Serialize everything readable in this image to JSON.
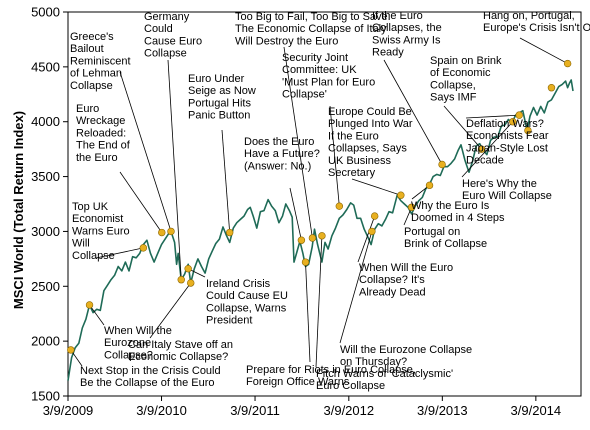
{
  "chart_data": {
    "type": "line",
    "ylabel": "MSCI World (Total Return Index)",
    "xlabel": "",
    "ylim": [
      1500,
      5000
    ],
    "yticks": [
      1500,
      2000,
      2500,
      3000,
      3500,
      4000,
      4500,
      5000
    ],
    "xticks": [
      {
        "label": "3/9/2009",
        "date": "2009-03-09"
      },
      {
        "label": "3/9/2010",
        "date": "2010-03-09"
      },
      {
        "label": "3/9/2011",
        "date": "2011-03-09"
      },
      {
        "label": "3/9/2012",
        "date": "2012-03-09"
      },
      {
        "label": "3/9/2013",
        "date": "2013-03-09"
      },
      {
        "label": "3/9/2014",
        "date": "2014-03-09"
      }
    ],
    "xlim": [
      "2009-03-09",
      "2014-08-01"
    ],
    "grid": false,
    "series_color": "#1f6b57",
    "marker_color": "#e8b020",
    "series": [
      {
        "points": [
          [
            "2009-03-09",
            1640
          ],
          [
            "2009-03-23",
            1850
          ],
          [
            "2009-04-06",
            1940
          ],
          [
            "2009-04-20",
            1980
          ],
          [
            "2009-05-04",
            2120
          ],
          [
            "2009-05-18",
            2200
          ],
          [
            "2009-06-01",
            2330
          ],
          [
            "2009-06-15",
            2260
          ],
          [
            "2009-06-29",
            2290
          ],
          [
            "2009-07-13",
            2280
          ],
          [
            "2009-07-27",
            2460
          ],
          [
            "2009-08-10",
            2510
          ],
          [
            "2009-08-24",
            2560
          ],
          [
            "2009-09-07",
            2600
          ],
          [
            "2009-09-21",
            2680
          ],
          [
            "2009-10-05",
            2640
          ],
          [
            "2009-10-19",
            2720
          ],
          [
            "2009-11-02",
            2640
          ],
          [
            "2009-11-16",
            2770
          ],
          [
            "2009-11-30",
            2760
          ],
          [
            "2009-12-14",
            2800
          ],
          [
            "2009-12-28",
            2880
          ],
          [
            "2010-01-11",
            2920
          ],
          [
            "2010-01-25",
            2800
          ],
          [
            "2010-02-08",
            2720
          ],
          [
            "2010-02-22",
            2800
          ],
          [
            "2010-03-09",
            2880
          ],
          [
            "2010-03-23",
            2930
          ],
          [
            "2010-04-06",
            2980
          ],
          [
            "2010-04-15",
            3000
          ],
          [
            "2010-04-29",
            2900
          ],
          [
            "2010-05-07",
            2700
          ],
          [
            "2010-05-13",
            2800
          ],
          [
            "2010-05-25",
            2560
          ],
          [
            "2010-06-07",
            2610
          ],
          [
            "2010-06-21",
            2700
          ],
          [
            "2010-07-01",
            2530
          ],
          [
            "2010-07-15",
            2660
          ],
          [
            "2010-07-29",
            2750
          ],
          [
            "2010-08-12",
            2680
          ],
          [
            "2010-08-26",
            2620
          ],
          [
            "2010-09-09",
            2750
          ],
          [
            "2010-09-23",
            2820
          ],
          [
            "2010-10-07",
            2890
          ],
          [
            "2010-10-21",
            2930
          ],
          [
            "2010-11-04",
            3040
          ],
          [
            "2010-11-18",
            2960
          ],
          [
            "2010-11-30",
            2900
          ],
          [
            "2010-12-14",
            3030
          ],
          [
            "2010-12-28",
            3080
          ],
          [
            "2011-01-11",
            3110
          ],
          [
            "2011-01-25",
            3140
          ],
          [
            "2011-02-08",
            3200
          ],
          [
            "2011-02-18",
            3220
          ],
          [
            "2011-03-02",
            3140
          ],
          [
            "2011-03-16",
            3030
          ],
          [
            "2011-03-30",
            3180
          ],
          [
            "2011-04-13",
            3190
          ],
          [
            "2011-04-29",
            3290
          ],
          [
            "2011-05-13",
            3230
          ],
          [
            "2011-05-27",
            3190
          ],
          [
            "2011-06-10",
            3080
          ],
          [
            "2011-06-24",
            3140
          ],
          [
            "2011-07-07",
            3250
          ],
          [
            "2011-07-21",
            3190
          ],
          [
            "2011-08-01",
            3130
          ],
          [
            "2011-08-08",
            2720
          ],
          [
            "2011-08-18",
            2800
          ],
          [
            "2011-08-31",
            2910
          ],
          [
            "2011-09-12",
            2800
          ],
          [
            "2011-09-22",
            2680
          ],
          [
            "2011-10-04",
            2700
          ],
          [
            "2011-10-18",
            2860
          ],
          [
            "2011-10-27",
            3020
          ],
          [
            "2011-11-08",
            2880
          ],
          [
            "2011-11-25",
            2720
          ],
          [
            "2011-12-07",
            2900
          ],
          [
            "2011-12-19",
            2840
          ],
          [
            "2012-01-03",
            2960
          ],
          [
            "2012-01-17",
            3030
          ],
          [
            "2012-02-01",
            3120
          ],
          [
            "2012-02-15",
            3150
          ],
          [
            "2012-03-01",
            3200
          ],
          [
            "2012-03-16",
            3260
          ],
          [
            "2012-03-28",
            3240
          ],
          [
            "2012-04-10",
            3120
          ],
          [
            "2012-04-24",
            3120
          ],
          [
            "2012-05-08",
            3020
          ],
          [
            "2012-05-22",
            2950
          ],
          [
            "2012-06-04",
            2880
          ],
          [
            "2012-06-18",
            3020
          ],
          [
            "2012-07-02",
            3070
          ],
          [
            "2012-07-16",
            3050
          ],
          [
            "2012-07-30",
            3110
          ],
          [
            "2012-08-13",
            3180
          ],
          [
            "2012-08-27",
            3170
          ],
          [
            "2012-09-14",
            3330
          ],
          [
            "2012-09-28",
            3280
          ],
          [
            "2012-10-12",
            3250
          ],
          [
            "2012-10-26",
            3220
          ],
          [
            "2012-11-09",
            3160
          ],
          [
            "2012-11-23",
            3230
          ],
          [
            "2012-12-07",
            3280
          ],
          [
            "2012-12-21",
            3310
          ],
          [
            "2013-01-04",
            3390
          ],
          [
            "2013-01-18",
            3430
          ],
          [
            "2013-02-01",
            3500
          ],
          [
            "2013-02-15",
            3520
          ],
          [
            "2013-03-01",
            3510
          ],
          [
            "2013-03-15",
            3590
          ],
          [
            "2013-03-29",
            3590
          ],
          [
            "2013-04-12",
            3620
          ],
          [
            "2013-04-26",
            3660
          ],
          [
            "2013-05-10",
            3740
          ],
          [
            "2013-05-21",
            3790
          ],
          [
            "2013-06-05",
            3650
          ],
          [
            "2013-06-21",
            3540
          ],
          [
            "2013-07-05",
            3640
          ],
          [
            "2013-07-19",
            3780
          ],
          [
            "2013-08-02",
            3800
          ],
          [
            "2013-08-16",
            3740
          ],
          [
            "2013-08-30",
            3700
          ],
          [
            "2013-09-13",
            3830
          ],
          [
            "2013-09-27",
            3860
          ],
          [
            "2013-10-11",
            3860
          ],
          [
            "2013-10-25",
            3960
          ],
          [
            "2013-11-08",
            3970
          ],
          [
            "2013-11-22",
            4020
          ],
          [
            "2013-12-06",
            3990
          ],
          [
            "2013-12-20",
            4060
          ],
          [
            "2014-01-03",
            4080
          ],
          [
            "2014-01-17",
            4100
          ],
          [
            "2014-02-03",
            3920
          ],
          [
            "2014-02-14",
            4050
          ],
          [
            "2014-02-28",
            4130
          ],
          [
            "2014-03-14",
            4060
          ],
          [
            "2014-03-28",
            4140
          ],
          [
            "2014-04-11",
            4080
          ],
          [
            "2014-04-25",
            4180
          ],
          [
            "2014-05-09",
            4200
          ],
          [
            "2014-05-23",
            4260
          ],
          [
            "2014-06-06",
            4320
          ],
          [
            "2014-06-20",
            4340
          ],
          [
            "2014-07-03",
            4370
          ],
          [
            "2014-07-11",
            4310
          ],
          [
            "2014-07-18",
            4350
          ],
          [
            "2014-07-25",
            4380
          ],
          [
            "2014-08-01",
            4280
          ]
        ]
      }
    ],
    "annotations": [
      {
        "date": "2009-03-20",
        "value": 1920,
        "lines": [
          "Next Stop in the Crisis Could",
          "Be the Collapse of the Euro"
        ]
      },
      {
        "date": "2009-06-01",
        "value": 2330,
        "lines": [
          "When Will the",
          "Eurozone",
          "Collapse?"
        ]
      },
      {
        "date": "2009-12-28",
        "value": 2850,
        "lines": [
          "Top UK",
          "Economist",
          "Warns Euro",
          "Will",
          "Collapse"
        ]
      },
      {
        "date": "2010-03-10",
        "value": 2990,
        "lines": [
          "Euro",
          "Wreckage",
          "Reloaded:",
          "The End of",
          "the Euro"
        ]
      },
      {
        "date": "2010-04-15",
        "value": 3000,
        "lines": [
          "Greece's",
          "Bailout",
          "Reminiscent",
          "of Lehman",
          "Collapse"
        ]
      },
      {
        "date": "2010-05-25",
        "value": 2560,
        "lines": [
          "Germany",
          "Could",
          "Cause Euro",
          "Collapse"
        ]
      },
      {
        "date": "2010-07-01",
        "value": 2530,
        "lines": [
          "Can Italy Stave off an",
          "Economic Collapse?"
        ]
      },
      {
        "date": "2010-06-21",
        "value": 2660,
        "lines": [
          "Ireland Crisis",
          "Could Cause EU",
          "Collapse, Warns",
          "President"
        ]
      },
      {
        "date": "2010-11-30",
        "value": 2990,
        "lines": [
          "Euro Under",
          "Seige as Now",
          "Portugal Hits",
          "Panic Button"
        ]
      },
      {
        "date": "2011-09-06",
        "value": 2920,
        "lines": [
          "Does the Euro",
          "Have a Future?",
          "(Answer: No.)"
        ]
      },
      {
        "date": "2011-09-22",
        "value": 2720,
        "lines": [
          "Prepare for Riots in Euro Collapse,",
          "Foreign Office Warns"
        ]
      },
      {
        "date": "2011-10-19",
        "value": 2940,
        "lines": [
          "Too Big to Fail, Too Big to Save:",
          "The Economic Collapse of Italy",
          "Will Destroy the Euro"
        ]
      },
      {
        "date": "2011-11-25",
        "value": 2960,
        "lines": [
          "Fitch Warns of 'Cataclysmic'",
          "Euro Collapse"
        ]
      },
      {
        "date": "2012-02-01",
        "value": 3230,
        "lines": [
          "Security Joint",
          "Committee: UK",
          "'Must Plan for Euro",
          "Collapse'"
        ]
      },
      {
        "date": "2012-06-07",
        "value": 3000,
        "lines": [
          "Will the Eurozone Collapse",
          "on Thursday?"
        ]
      },
      {
        "date": "2012-06-18",
        "value": 3140,
        "lines": [
          "When Will the Euro",
          "Collapse?  It's",
          "Already Dead"
        ]
      },
      {
        "date": "2012-09-28",
        "value": 3330,
        "lines": [
          "Europe Could Be",
          "Plunged Into War",
          "If the Euro",
          "Collapses, Says",
          "UK Business",
          "Secretary"
        ]
      },
      {
        "date": "2012-11-09",
        "value": 3220,
        "lines": [
          "Portugal on",
          "Brink of Collapse"
        ]
      },
      {
        "date": "2013-01-18",
        "value": 3420,
        "lines": [
          "Why the Euro Is",
          "Doomed in 4 Steps"
        ]
      },
      {
        "date": "2013-03-08",
        "value": 3610,
        "lines": [
          "If the Euro",
          "Collapses, the",
          "Swiss Army Is",
          "Ready"
        ]
      },
      {
        "date": "2013-08-09",
        "value": 3750,
        "lines": [
          "Spain on Brink",
          "of Economic",
          "Collapse,",
          "Says IMF"
        ]
      },
      {
        "date": "2013-12-09",
        "value": 4000,
        "lines": [
          "Here's Why the",
          "Euro Will Collapse"
        ]
      },
      {
        "date": "2014-01-03",
        "value": 4060,
        "lines": [
          "Deflation Wars?",
          "Economists Fear",
          "Japan-Style Lost",
          "Decade"
        ]
      },
      {
        "date": "2014-02-06",
        "value": 3920,
        "lines": []
      },
      {
        "date": "2014-05-09",
        "value": 4310,
        "lines": []
      },
      {
        "date": "2014-07-11",
        "value": 4530,
        "lines": [
          "Hang on, Portugal,",
          "Europe's Crisis Isn't Over"
        ]
      }
    ]
  }
}
